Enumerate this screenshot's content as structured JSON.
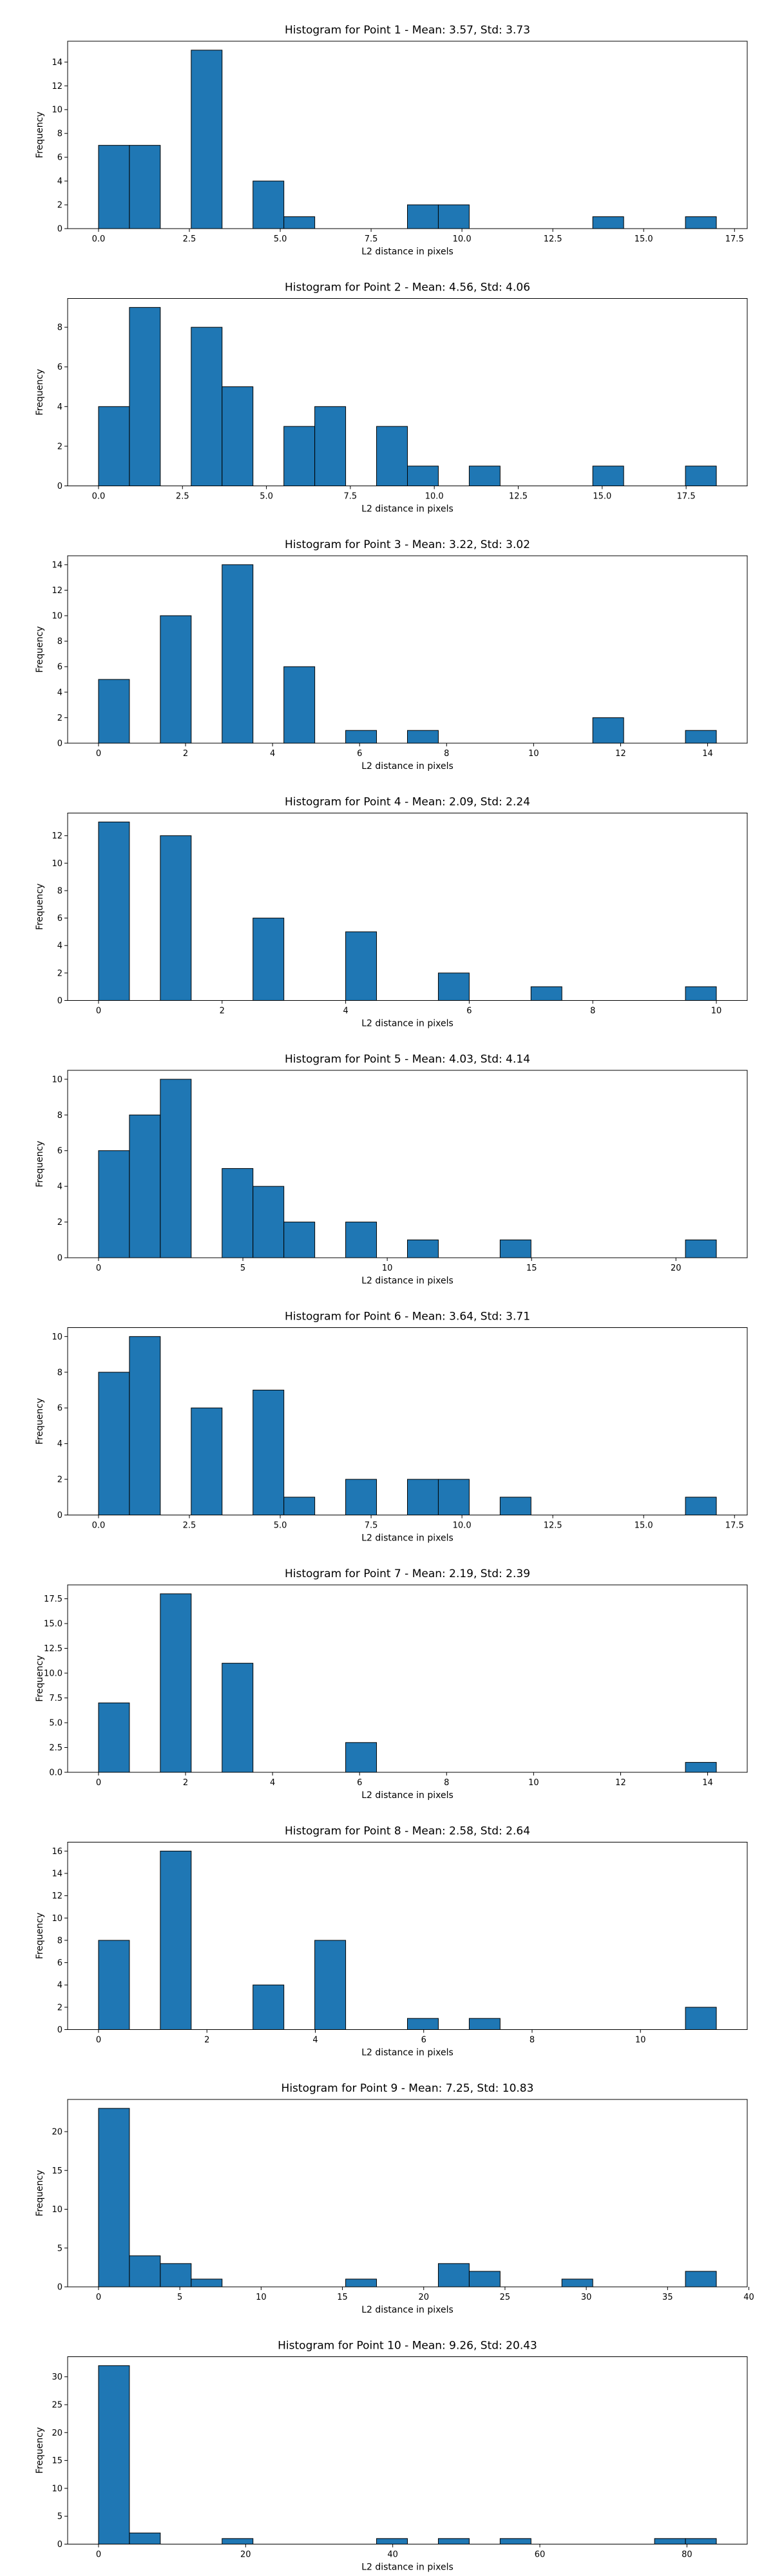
{
  "colors": {
    "bar_fill": "#1f77b4",
    "bar_edge": "#000000",
    "axes": "#000000",
    "background": "#ffffff"
  },
  "chart_data": [
    {
      "type": "bar",
      "title": "Histogram for Point 1 - Mean: 3.57, Std: 3.73",
      "xlabel": "L2 distance in pixels",
      "ylabel": "Frequency",
      "xlim": [
        -0.85,
        17.85
      ],
      "ylim": [
        0,
        15.75
      ],
      "xticks": [
        0.0,
        2.5,
        5.0,
        7.5,
        10.0,
        12.5,
        15.0,
        17.5
      ],
      "xticklabels": [
        "0.0",
        "2.5",
        "5.0",
        "7.5",
        "10.0",
        "12.5",
        "15.0",
        "17.5"
      ],
      "yticks": [
        0,
        2,
        4,
        6,
        8,
        10,
        12,
        14
      ],
      "yticklabels": [
        "0",
        "2",
        "4",
        "6",
        "8",
        "10",
        "12",
        "14"
      ],
      "bins": [
        {
          "x0": 0.0,
          "x1": 0.85,
          "count": 7
        },
        {
          "x0": 0.85,
          "x1": 1.7,
          "count": 7
        },
        {
          "x0": 2.55,
          "x1": 3.4,
          "count": 15
        },
        {
          "x0": 4.25,
          "x1": 5.1,
          "count": 4
        },
        {
          "x0": 5.1,
          "x1": 5.95,
          "count": 1
        },
        {
          "x0": 8.5,
          "x1": 9.35,
          "count": 2
        },
        {
          "x0": 9.35,
          "x1": 10.2,
          "count": 2
        },
        {
          "x0": 13.6,
          "x1": 14.45,
          "count": 1
        },
        {
          "x0": 16.15,
          "x1": 17.0,
          "count": 1
        }
      ]
    },
    {
      "type": "bar",
      "title": "Histogram for Point 2 - Mean: 4.56, Std: 4.06",
      "xlabel": "L2 distance in pixels",
      "ylabel": "Frequency",
      "xlim": [
        -0.92,
        19.32
      ],
      "ylim": [
        0,
        9.45
      ],
      "xticks": [
        0.0,
        2.5,
        5.0,
        7.5,
        10.0,
        12.5,
        15.0,
        17.5
      ],
      "xticklabels": [
        "0.0",
        "2.5",
        "5.0",
        "7.5",
        "10.0",
        "12.5",
        "15.0",
        "17.5"
      ],
      "yticks": [
        0,
        2,
        4,
        6,
        8
      ],
      "yticklabels": [
        "0",
        "2",
        "4",
        "6",
        "8"
      ],
      "bins": [
        {
          "x0": 0.0,
          "x1": 0.92,
          "count": 4
        },
        {
          "x0": 0.92,
          "x1": 1.84,
          "count": 9
        },
        {
          "x0": 2.76,
          "x1": 3.68,
          "count": 8
        },
        {
          "x0": 3.68,
          "x1": 4.6,
          "count": 5
        },
        {
          "x0": 5.52,
          "x1": 6.44,
          "count": 3
        },
        {
          "x0": 6.44,
          "x1": 7.36,
          "count": 4
        },
        {
          "x0": 8.28,
          "x1": 9.2,
          "count": 3
        },
        {
          "x0": 9.2,
          "x1": 10.12,
          "count": 1
        },
        {
          "x0": 11.04,
          "x1": 11.96,
          "count": 1
        },
        {
          "x0": 14.72,
          "x1": 15.64,
          "count": 1
        },
        {
          "x0": 17.48,
          "x1": 18.4,
          "count": 1
        }
      ]
    },
    {
      "type": "bar",
      "title": "Histogram for Point 3 - Mean: 3.22, Std: 3.02",
      "xlabel": "L2 distance in pixels",
      "ylabel": "Frequency",
      "xlim": [
        -0.71,
        14.91
      ],
      "ylim": [
        0,
        14.7
      ],
      "xticks": [
        0,
        2,
        4,
        6,
        8,
        10,
        12,
        14
      ],
      "xticklabels": [
        "0",
        "2",
        "4",
        "6",
        "8",
        "10",
        "12",
        "14"
      ],
      "yticks": [
        0,
        2,
        4,
        6,
        8,
        10,
        12,
        14
      ],
      "yticklabels": [
        "0",
        "2",
        "4",
        "6",
        "8",
        "10",
        "12",
        "14"
      ],
      "bins": [
        {
          "x0": 0.0,
          "x1": 0.71,
          "count": 5
        },
        {
          "x0": 1.42,
          "x1": 2.13,
          "count": 10
        },
        {
          "x0": 2.84,
          "x1": 3.55,
          "count": 14
        },
        {
          "x0": 4.26,
          "x1": 4.97,
          "count": 6
        },
        {
          "x0": 5.68,
          "x1": 6.39,
          "count": 1
        },
        {
          "x0": 7.1,
          "x1": 7.81,
          "count": 1
        },
        {
          "x0": 11.36,
          "x1": 12.07,
          "count": 2
        },
        {
          "x0": 13.49,
          "x1": 14.2,
          "count": 1
        }
      ]
    },
    {
      "type": "bar",
      "title": "Histogram for Point 4 - Mean: 2.09, Std: 2.24",
      "xlabel": "L2 distance in pixels",
      "ylabel": "Frequency",
      "xlim": [
        -0.5,
        10.5
      ],
      "ylim": [
        0,
        13.65
      ],
      "xticks": [
        0,
        2,
        4,
        6,
        8,
        10
      ],
      "xticklabels": [
        "0",
        "2",
        "4",
        "6",
        "8",
        "10"
      ],
      "yticks": [
        0,
        2,
        4,
        6,
        8,
        10,
        12
      ],
      "yticklabels": [
        "0",
        "2",
        "4",
        "6",
        "8",
        "10",
        "12"
      ],
      "bins": [
        {
          "x0": 0.0,
          "x1": 0.5,
          "count": 13
        },
        {
          "x0": 1.0,
          "x1": 1.5,
          "count": 12
        },
        {
          "x0": 2.5,
          "x1": 3.0,
          "count": 6
        },
        {
          "x0": 4.0,
          "x1": 4.5,
          "count": 5
        },
        {
          "x0": 5.5,
          "x1": 6.0,
          "count": 2
        },
        {
          "x0": 7.0,
          "x1": 7.5,
          "count": 1
        },
        {
          "x0": 9.5,
          "x1": 10.0,
          "count": 1
        }
      ]
    },
    {
      "type": "bar",
      "title": "Histogram for Point 5 - Mean: 4.03, Std: 4.14",
      "xlabel": "L2 distance in pixels",
      "ylabel": "Frequency",
      "xlim": [
        -1.07,
        22.47
      ],
      "ylim": [
        0,
        10.5
      ],
      "xticks": [
        0,
        5,
        10,
        15,
        20
      ],
      "xticklabels": [
        "0",
        "5",
        "10",
        "15",
        "20"
      ],
      "yticks": [
        0,
        2,
        4,
        6,
        8,
        10
      ],
      "yticklabels": [
        "0",
        "2",
        "4",
        "6",
        "8",
        "10"
      ],
      "bins": [
        {
          "x0": 0.0,
          "x1": 1.07,
          "count": 6
        },
        {
          "x0": 1.07,
          "x1": 2.14,
          "count": 8
        },
        {
          "x0": 2.14,
          "x1": 3.21,
          "count": 10
        },
        {
          "x0": 4.28,
          "x1": 5.35,
          "count": 5
        },
        {
          "x0": 5.35,
          "x1": 6.42,
          "count": 4
        },
        {
          "x0": 6.42,
          "x1": 7.49,
          "count": 2
        },
        {
          "x0": 8.56,
          "x1": 9.63,
          "count": 2
        },
        {
          "x0": 10.7,
          "x1": 11.77,
          "count": 1
        },
        {
          "x0": 13.91,
          "x1": 14.98,
          "count": 1
        },
        {
          "x0": 20.33,
          "x1": 21.4,
          "count": 1
        }
      ]
    },
    {
      "type": "bar",
      "title": "Histogram for Point 6 - Mean: 3.64, Std: 3.71",
      "xlabel": "L2 distance in pixels",
      "ylabel": "Frequency",
      "xlim": [
        -0.85,
        17.85
      ],
      "ylim": [
        0,
        10.5
      ],
      "xticks": [
        0.0,
        2.5,
        5.0,
        7.5,
        10.0,
        12.5,
        15.0,
        17.5
      ],
      "xticklabels": [
        "0.0",
        "2.5",
        "5.0",
        "7.5",
        "10.0",
        "12.5",
        "15.0",
        "17.5"
      ],
      "yticks": [
        0,
        2,
        4,
        6,
        8,
        10
      ],
      "yticklabels": [
        "0",
        "2",
        "4",
        "6",
        "8",
        "10"
      ],
      "bins": [
        {
          "x0": 0.0,
          "x1": 0.85,
          "count": 8
        },
        {
          "x0": 0.85,
          "x1": 1.7,
          "count": 10
        },
        {
          "x0": 2.55,
          "x1": 3.4,
          "count": 6
        },
        {
          "x0": 4.25,
          "x1": 5.1,
          "count": 7
        },
        {
          "x0": 5.1,
          "x1": 5.95,
          "count": 1
        },
        {
          "x0": 6.8,
          "x1": 7.65,
          "count": 2
        },
        {
          "x0": 8.5,
          "x1": 9.35,
          "count": 2
        },
        {
          "x0": 9.35,
          "x1": 10.2,
          "count": 2
        },
        {
          "x0": 11.05,
          "x1": 11.9,
          "count": 1
        },
        {
          "x0": 16.15,
          "x1": 17.0,
          "count": 1
        }
      ]
    },
    {
      "type": "bar",
      "title": "Histogram for Point 7 - Mean: 2.19, Std: 2.39",
      "xlabel": "L2 distance in pixels",
      "ylabel": "Frequency",
      "xlim": [
        -0.71,
        14.91
      ],
      "ylim": [
        0,
        18.9
      ],
      "xticks": [
        0,
        2,
        4,
        6,
        8,
        10,
        12,
        14
      ],
      "xticklabels": [
        "0",
        "2",
        "4",
        "6",
        "8",
        "10",
        "12",
        "14"
      ],
      "yticks": [
        0,
        2.5,
        5,
        7.5,
        10,
        12.5,
        15,
        17.5
      ],
      "yticklabels": [
        "0.0",
        "2.5",
        "5.0",
        "7.5",
        "10.0",
        "12.5",
        "15.0",
        "17.5"
      ],
      "bins": [
        {
          "x0": 0.0,
          "x1": 0.71,
          "count": 7
        },
        {
          "x0": 1.42,
          "x1": 2.13,
          "count": 18
        },
        {
          "x0": 2.84,
          "x1": 3.55,
          "count": 11
        },
        {
          "x0": 5.68,
          "x1": 6.39,
          "count": 3
        },
        {
          "x0": 13.49,
          "x1": 14.2,
          "count": 1
        }
      ]
    },
    {
      "type": "bar",
      "title": "Histogram for Point 8 - Mean: 2.58, Std: 2.64",
      "xlabel": "L2 distance in pixels",
      "ylabel": "Frequency",
      "xlim": [
        -0.57,
        11.97
      ],
      "ylim": [
        0,
        16.8
      ],
      "xticks": [
        0,
        2,
        4,
        6,
        8,
        10
      ],
      "xticklabels": [
        "0",
        "2",
        "4",
        "6",
        "8",
        "10"
      ],
      "yticks": [
        0,
        2,
        4,
        6,
        8,
        10,
        12,
        14,
        16
      ],
      "yticklabels": [
        "0",
        "2",
        "4",
        "6",
        "8",
        "10",
        "12",
        "14",
        "16"
      ],
      "bins": [
        {
          "x0": 0.0,
          "x1": 0.57,
          "count": 8
        },
        {
          "x0": 1.14,
          "x1": 1.71,
          "count": 16
        },
        {
          "x0": 2.85,
          "x1": 3.42,
          "count": 4
        },
        {
          "x0": 3.99,
          "x1": 4.56,
          "count": 8
        },
        {
          "x0": 5.7,
          "x1": 6.27,
          "count": 1
        },
        {
          "x0": 6.84,
          "x1": 7.41,
          "count": 1
        },
        {
          "x0": 10.83,
          "x1": 11.4,
          "count": 2
        }
      ]
    },
    {
      "type": "bar",
      "title": "Histogram for Point 9 - Mean: 7.25, Std: 10.83",
      "xlabel": "L2 distance in pixels",
      "ylabel": "Frequency",
      "xlim": [
        -1.9,
        39.9
      ],
      "ylim": [
        0,
        24.15
      ],
      "xticks": [
        0,
        5,
        10,
        15,
        20,
        25,
        30,
        35,
        40
      ],
      "xticklabels": [
        "0",
        "5",
        "10",
        "15",
        "20",
        "25",
        "30",
        "35",
        "40"
      ],
      "yticks": [
        0,
        5,
        10,
        15,
        20
      ],
      "yticklabels": [
        "0",
        "5",
        "10",
        "15",
        "20"
      ],
      "bins": [
        {
          "x0": 0.0,
          "x1": 1.9,
          "count": 23
        },
        {
          "x0": 1.9,
          "x1": 3.8,
          "count": 4
        },
        {
          "x0": 3.8,
          "x1": 5.7,
          "count": 3
        },
        {
          "x0": 5.7,
          "x1": 7.6,
          "count": 1
        },
        {
          "x0": 15.2,
          "x1": 17.1,
          "count": 1
        },
        {
          "x0": 20.9,
          "x1": 22.8,
          "count": 3
        },
        {
          "x0": 22.8,
          "x1": 24.7,
          "count": 2
        },
        {
          "x0": 28.5,
          "x1": 30.4,
          "count": 1
        },
        {
          "x0": 36.1,
          "x1": 38.0,
          "count": 2
        }
      ]
    },
    {
      "type": "bar",
      "title": "Histogram for Point 10 - Mean: 9.26, Std: 20.43",
      "xlabel": "L2 distance in pixels",
      "ylabel": "Frequency",
      "xlim": [
        -4.2,
        88.2
      ],
      "ylim": [
        0,
        33.6
      ],
      "xticks": [
        0,
        20,
        40,
        60,
        80
      ],
      "xticklabels": [
        "0",
        "20",
        "40",
        "60",
        "80"
      ],
      "yticks": [
        0,
        5,
        10,
        15,
        20,
        25,
        30
      ],
      "yticklabels": [
        "0",
        "5",
        "10",
        "15",
        "20",
        "25",
        "30"
      ],
      "bins": [
        {
          "x0": 0.0,
          "x1": 4.2,
          "count": 32
        },
        {
          "x0": 4.2,
          "x1": 8.4,
          "count": 2
        },
        {
          "x0": 16.8,
          "x1": 21.0,
          "count": 1
        },
        {
          "x0": 37.8,
          "x1": 42.0,
          "count": 1
        },
        {
          "x0": 46.2,
          "x1": 50.4,
          "count": 1
        },
        {
          "x0": 54.6,
          "x1": 58.8,
          "count": 1
        },
        {
          "x0": 75.6,
          "x1": 79.8,
          "count": 1
        },
        {
          "x0": 79.8,
          "x1": 84.0,
          "count": 1
        }
      ]
    }
  ]
}
